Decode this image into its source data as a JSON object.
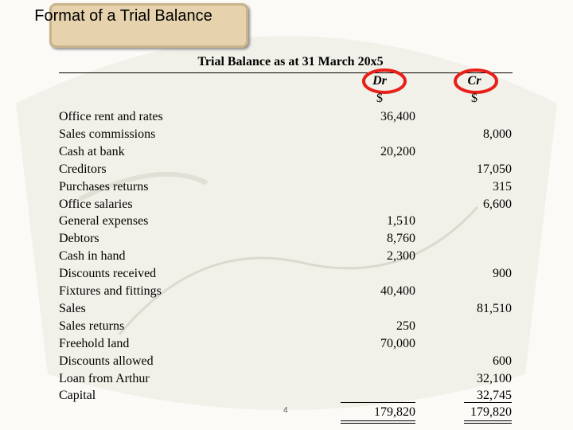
{
  "header": {
    "title": "Format of a Trial Balance"
  },
  "table": {
    "caption": "Trial Balance as at 31 March 20x5",
    "columns": [
      "Dr",
      "Cr"
    ],
    "units": [
      "$",
      "$"
    ],
    "rows": [
      [
        "Office rent and rates",
        "36,400",
        null
      ],
      [
        "Sales commissions",
        null,
        "8,000"
      ],
      [
        "Cash at bank",
        "20,200",
        null
      ],
      [
        "Creditors",
        null,
        "17,050"
      ],
      [
        "Purchases returns",
        null,
        "315"
      ],
      [
        "Office salaries",
        null,
        "6,600"
      ],
      [
        "General expenses",
        "1,510",
        null
      ],
      [
        "Debtors",
        "8,760",
        null
      ],
      [
        "Cash in hand",
        "2,300",
        null
      ],
      [
        "Discounts received",
        null,
        "900"
      ],
      [
        "Fixtures and fittings",
        "40,400",
        null
      ],
      [
        "Sales",
        null,
        "81,510"
      ],
      [
        "Sales returns",
        "250",
        null
      ],
      [
        "Freehold land",
        "70,000",
        null
      ],
      [
        "Discounts allowed",
        null,
        "600"
      ],
      [
        "Loan from Arthur",
        null,
        "32,100"
      ],
      [
        "Capital",
        null,
        "32,745"
      ]
    ],
    "totals": [
      "179,820",
      "179,820"
    ]
  },
  "page_number": "4"
}
